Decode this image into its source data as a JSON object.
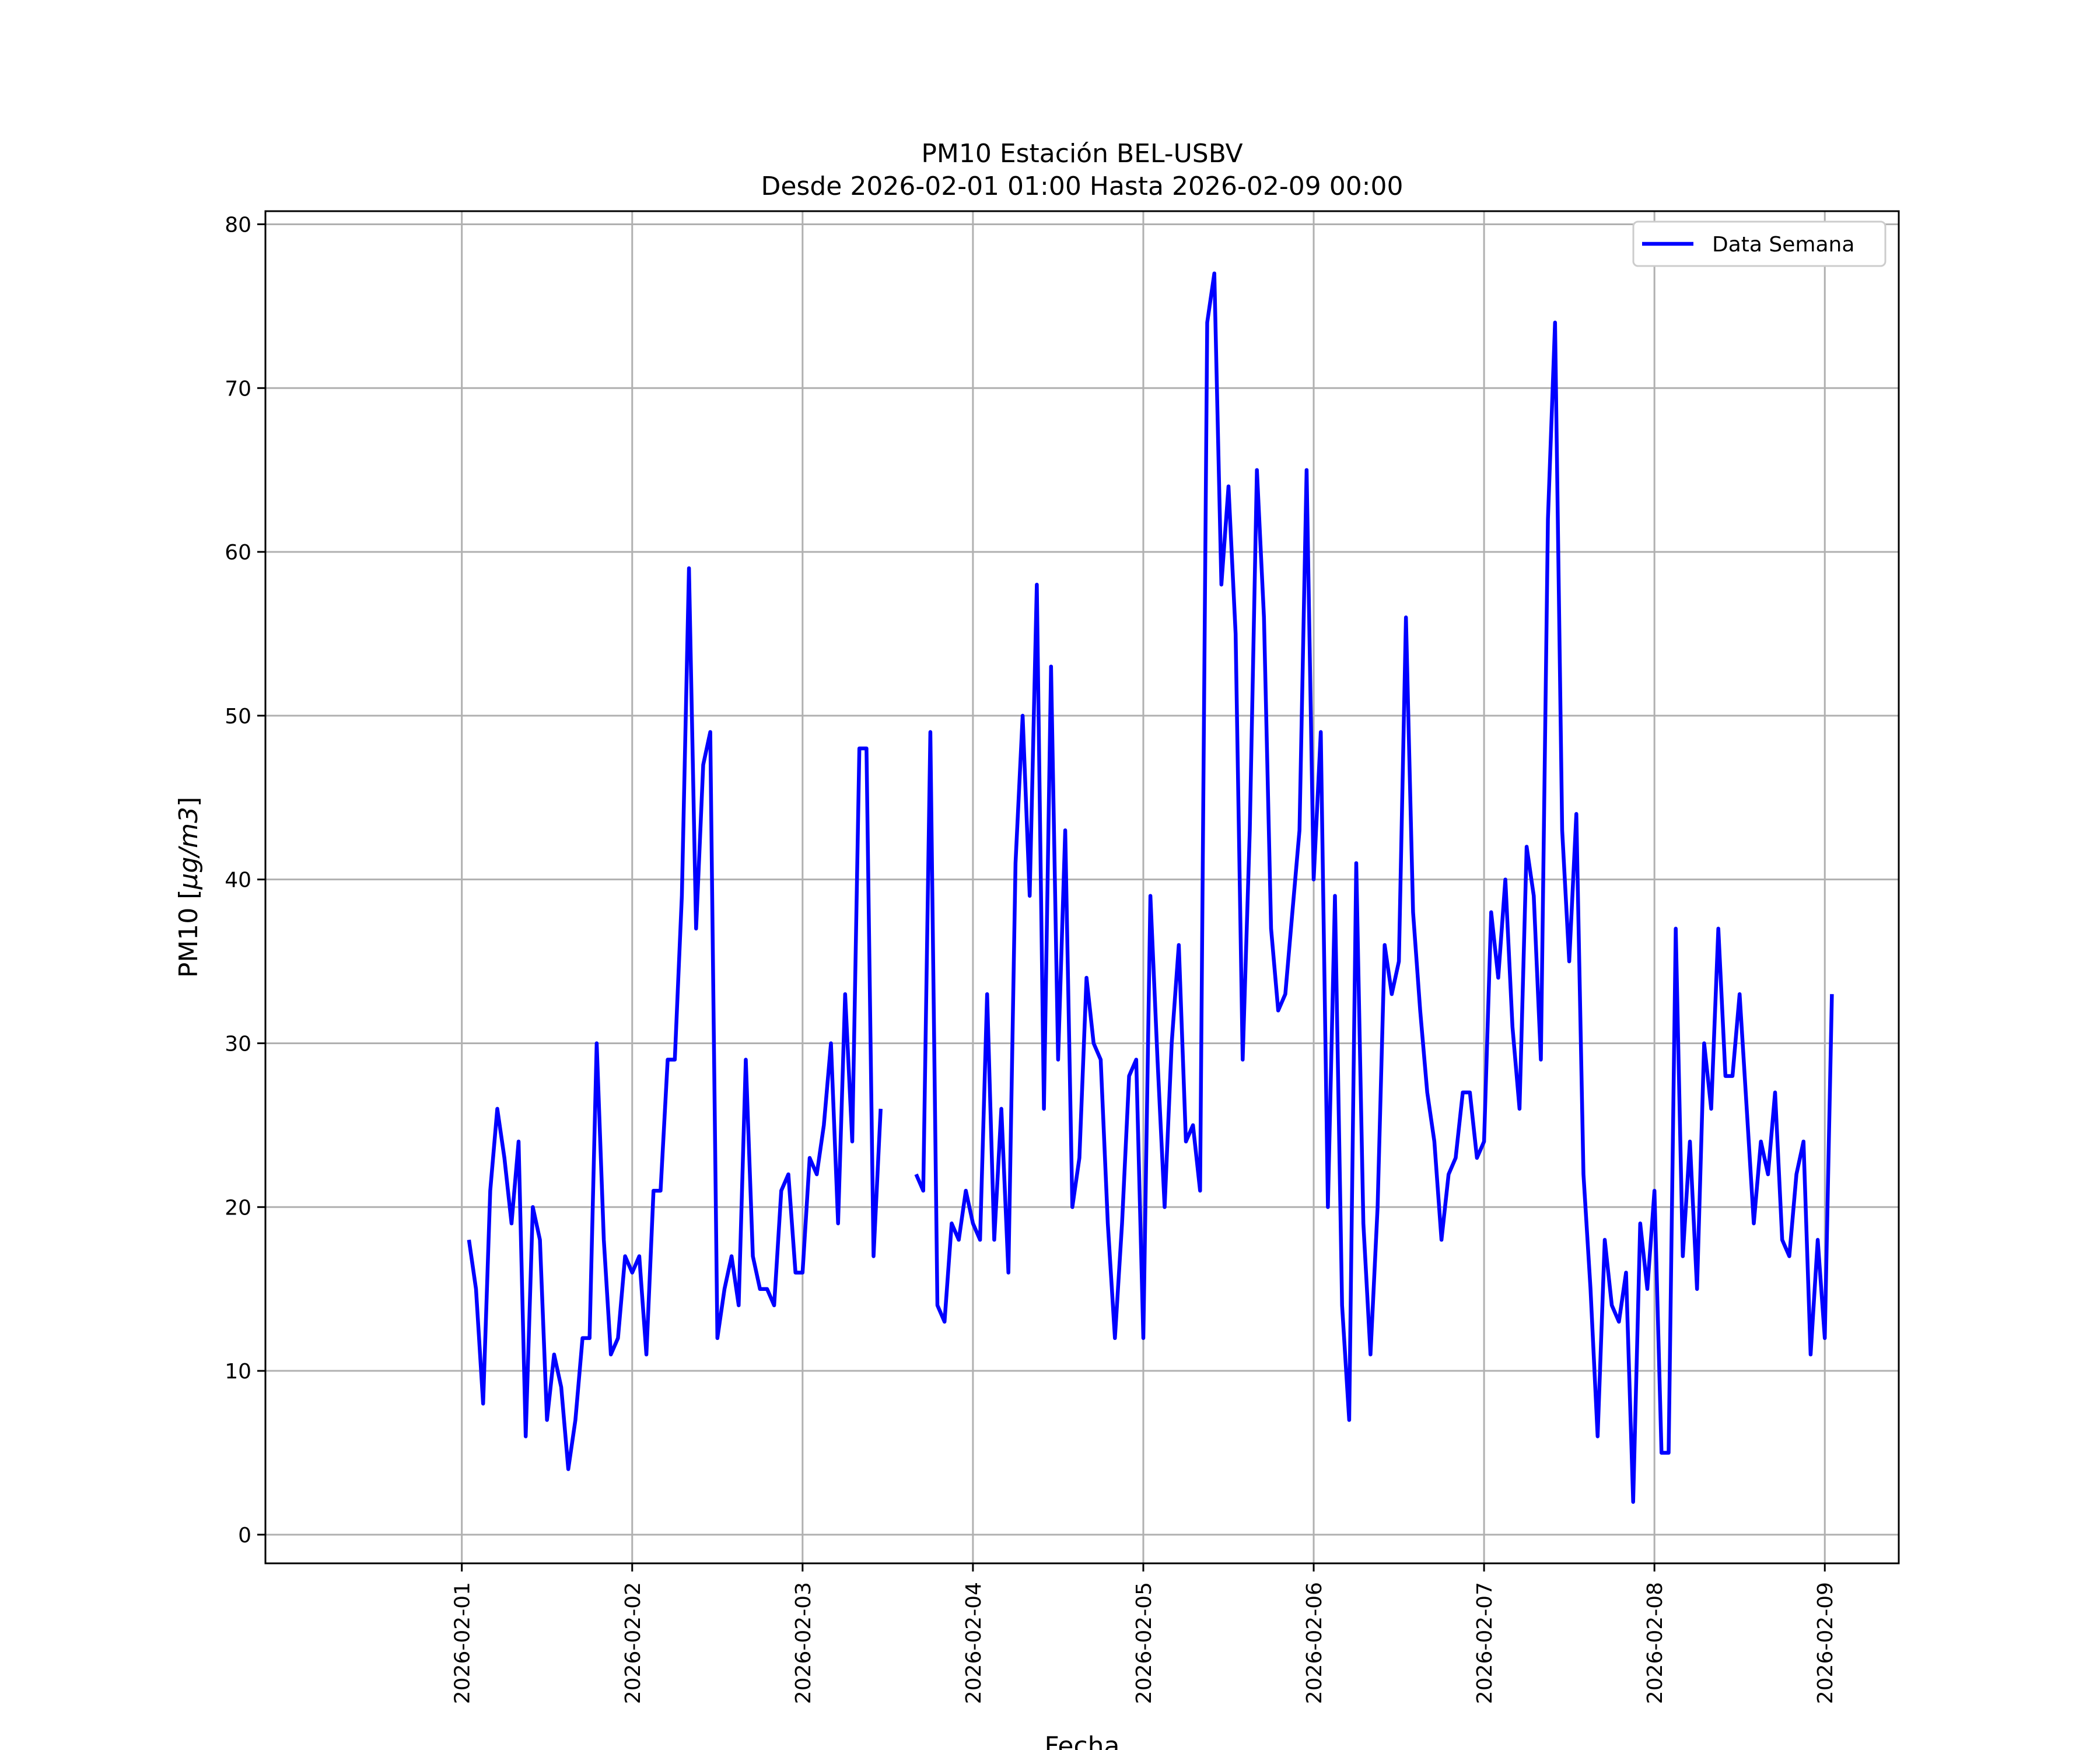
{
  "chart_data": {
    "type": "line",
    "title": [
      "PM10 Estación BEL-USBV",
      "Desde 2026-02-01 01:00 Hasta 2026-02-09 00:00"
    ],
    "xlabel": "Fecha",
    "ylabel_prefix": "PM10 [",
    "ylabel_unit": "µg/m3",
    "ylabel_suffix": "]",
    "x_start": "2026-02-01 01:00",
    "x_step_hours": 1,
    "xlim": [
      "2026-01-30 20:20",
      "2026-02-09 10:25"
    ],
    "ylim": [
      -1.75,
      80.8
    ],
    "x_ticks": [
      "2026-02-01",
      "2026-02-02",
      "2026-02-03",
      "2026-02-04",
      "2026-02-05",
      "2026-02-06",
      "2026-02-07",
      "2026-02-08",
      "2026-02-09"
    ],
    "y_ticks": [
      0,
      10,
      20,
      30,
      40,
      50,
      60,
      70,
      80
    ],
    "grid": true,
    "legend_position": "upper right",
    "series": [
      {
        "name": "Data Semana",
        "color": "#0000ff",
        "y": [
          18,
          15,
          8,
          21,
          26,
          23,
          19,
          24,
          6,
          20,
          18,
          7,
          11,
          9,
          4,
          7,
          12,
          12,
          30,
          18,
          11,
          12,
          17,
          16,
          17,
          11,
          21,
          21,
          29,
          29,
          39,
          59,
          37,
          47,
          49,
          12,
          15,
          17,
          14,
          29,
          17,
          15,
          15,
          14,
          21,
          22,
          16,
          16,
          23,
          22,
          25,
          30,
          19,
          33,
          24,
          48,
          48,
          17,
          26,
          null,
          null,
          null,
          null,
          22,
          21,
          49,
          14,
          13,
          19,
          18,
          21,
          19,
          18,
          33,
          18,
          26,
          16,
          41,
          50,
          39,
          58,
          26,
          53,
          29,
          43,
          20,
          23,
          34,
          30,
          29,
          19,
          12,
          19,
          28,
          29,
          12,
          39,
          29,
          20,
          30,
          36,
          24,
          25,
          21,
          74,
          77,
          58,
          64,
          55,
          29,
          43,
          65,
          56,
          37,
          32,
          33,
          38,
          43,
          65,
          40,
          49,
          20,
          39,
          14,
          7,
          41,
          19,
          11,
          20,
          36,
          33,
          35,
          56,
          38,
          32,
          27,
          24,
          18,
          22,
          23,
          27,
          27,
          23,
          24,
          38,
          34,
          40,
          31,
          26,
          42,
          39,
          29,
          62,
          74,
          43,
          35,
          44,
          22,
          15,
          6,
          18,
          14,
          13,
          16,
          2,
          19,
          15,
          21,
          5,
          5,
          37,
          17,
          24,
          15,
          30,
          26,
          37,
          28,
          28,
          33,
          26,
          19,
          24,
          22,
          27,
          18,
          17,
          22,
          24,
          11,
          18,
          12,
          33
        ]
      }
    ]
  }
}
